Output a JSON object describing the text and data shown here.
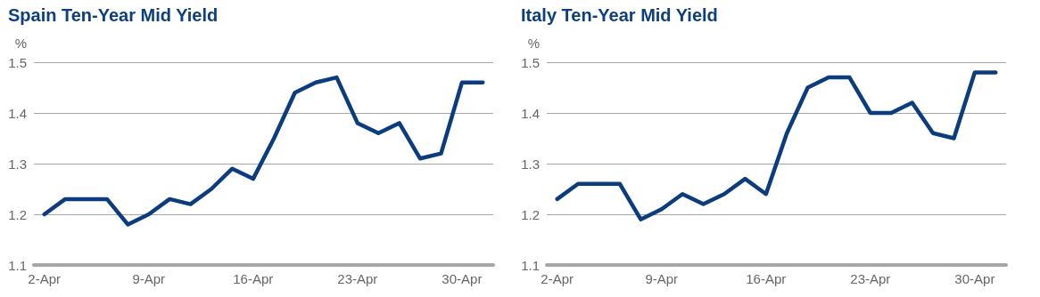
{
  "chart_data": [
    {
      "type": "line",
      "title": "Spain Ten-Year Mid Yield",
      "ylabel": "%",
      "categories": [
        "2-Apr",
        null,
        null,
        null,
        null,
        "9-Apr",
        null,
        null,
        null,
        null,
        "16-Apr",
        null,
        null,
        null,
        null,
        "23-Apr",
        null,
        null,
        null,
        null,
        "30-Apr",
        null
      ],
      "series": [
        {
          "color": "#0b3d7e",
          "values": [
            1.2,
            1.23,
            1.23,
            1.23,
            1.18,
            1.2,
            1.23,
            1.22,
            1.25,
            1.29,
            1.27,
            1.35,
            1.44,
            1.46,
            1.47,
            1.38,
            1.36,
            1.38,
            1.31,
            1.32,
            1.46,
            1.46
          ]
        }
      ],
      "ylim": [
        1.1,
        1.5
      ],
      "yticks": [
        1.1,
        1.2,
        1.3,
        1.4,
        1.5
      ],
      "grid": "y",
      "marker": "none",
      "line_style": "solid"
    },
    {
      "type": "line",
      "title": "Italy Ten-Year Mid Yield",
      "ylabel": "%",
      "categories": [
        "2-Apr",
        null,
        null,
        null,
        null,
        "9-Apr",
        null,
        null,
        null,
        null,
        "16-Apr",
        null,
        null,
        null,
        null,
        "23-Apr",
        null,
        null,
        null,
        null,
        "30-Apr",
        null
      ],
      "series": [
        {
          "color": "#0b3d7e",
          "values": [
            1.23,
            1.26,
            1.26,
            1.26,
            1.19,
            1.21,
            1.24,
            1.22,
            1.24,
            1.27,
            1.24,
            1.36,
            1.45,
            1.47,
            1.47,
            1.4,
            1.4,
            1.42,
            1.36,
            1.35,
            1.48,
            1.48
          ]
        }
      ],
      "ylim": [
        1.1,
        1.5
      ],
      "yticks": [
        1.1,
        1.2,
        1.3,
        1.4,
        1.5
      ],
      "grid": "y",
      "marker": "none",
      "line_style": "solid"
    }
  ]
}
